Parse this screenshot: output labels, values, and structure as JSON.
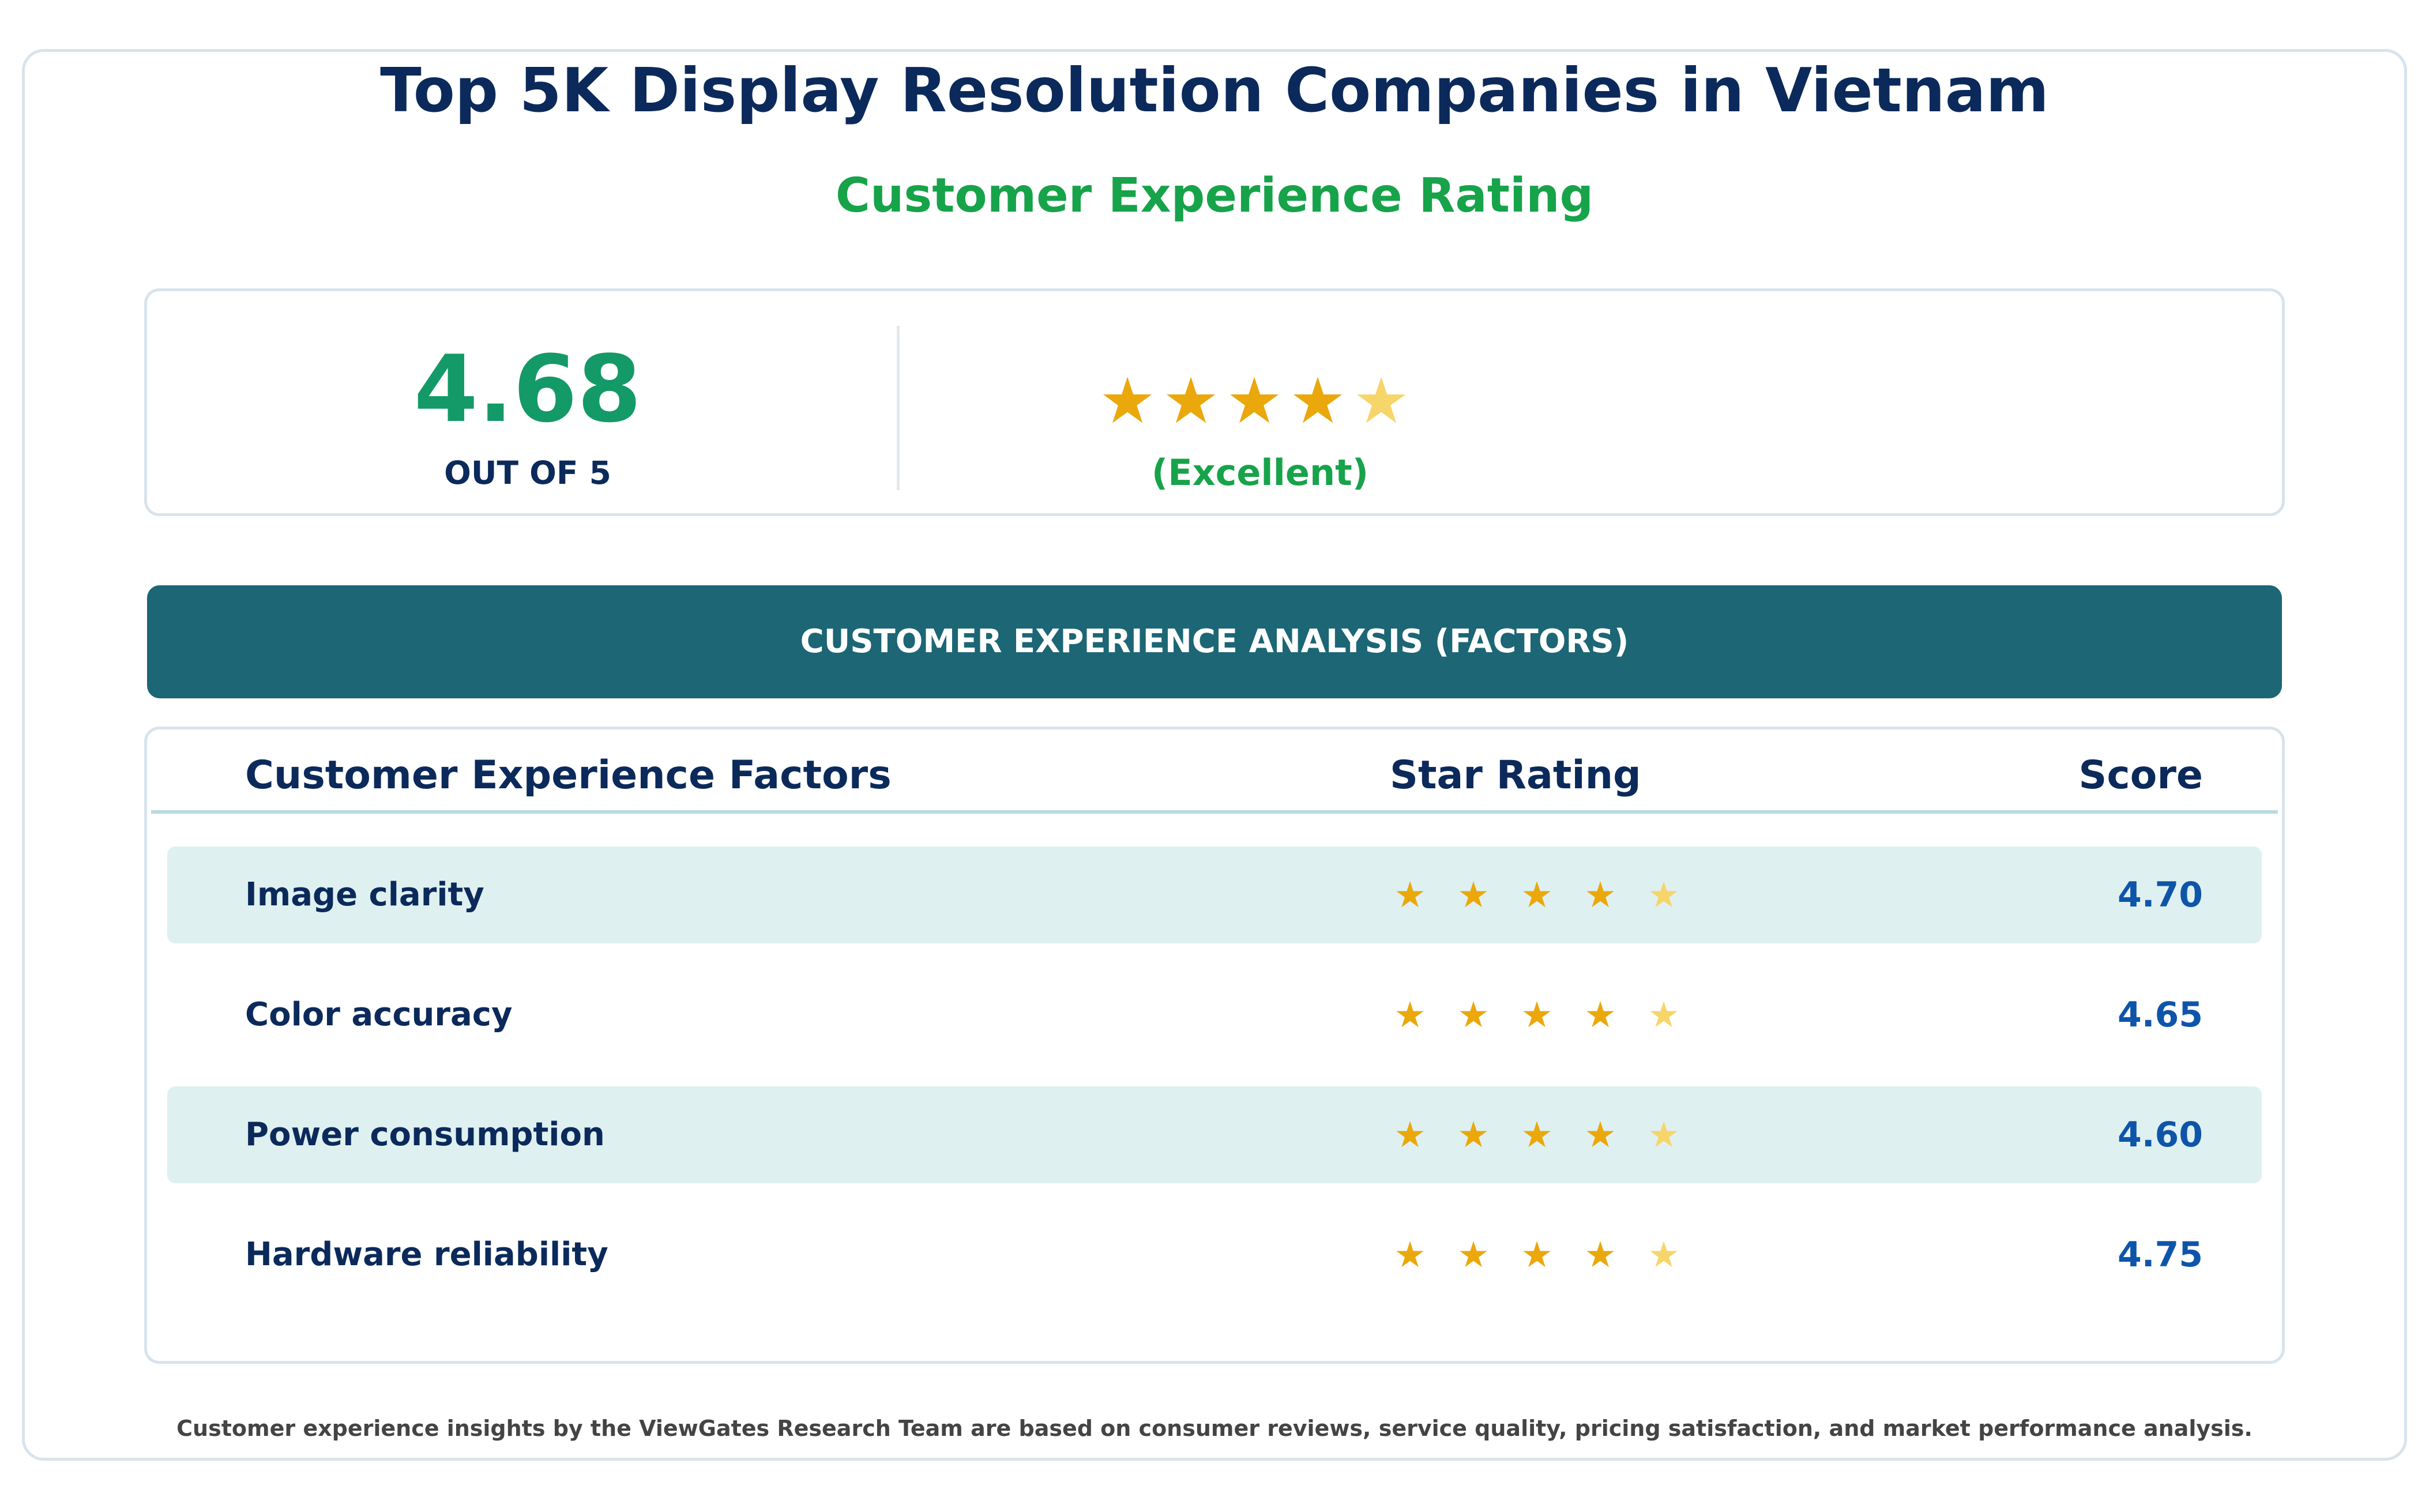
{
  "page": {
    "title": "Top 5K Display Resolution Companies in Vietnam",
    "subtitle": "Customer Experience Rating"
  },
  "summary": {
    "score": "4.68",
    "scale_label": "OUT OF 5",
    "star_rating": 4.68,
    "star_max": 5,
    "stars": [
      "★",
      "★",
      "★",
      "★",
      "★"
    ],
    "rating_word": "(Excellent)"
  },
  "analysis": {
    "banner": "CUSTOMER EXPERIENCE ANALYSIS (FACTORS)",
    "columns": {
      "factor": "Customer Experience Factors",
      "stars": "Star Rating",
      "score": "Score"
    },
    "rows": [
      {
        "factor": "Image clarity",
        "score": "4.70",
        "rating": 4.7,
        "stars": [
          "★",
          "★",
          "★",
          "★",
          "★"
        ]
      },
      {
        "factor": "Color accuracy",
        "score": "4.65",
        "rating": 4.65,
        "stars": [
          "★",
          "★",
          "★",
          "★",
          "★"
        ]
      },
      {
        "factor": "Power consumption",
        "score": "4.60",
        "rating": 4.6,
        "stars": [
          "★",
          "★",
          "★",
          "★",
          "★"
        ]
      },
      {
        "factor": "Hardware reliability",
        "score": "4.75",
        "rating": 4.75,
        "stars": [
          "★",
          "★",
          "★",
          "★",
          "★"
        ]
      }
    ]
  },
  "footnote": "Customer experience insights by the ViewGates Research Team are based on consumer reviews, service quality, pricing satisfaction, and market performance analysis.",
  "colors": {
    "title": "#0b2a5b",
    "accent_green": "#17a34a",
    "score_green": "#139a68",
    "banner": "#1c6675",
    "row_shade": "#dff0f0",
    "score_blue": "#0e55aa",
    "star_full": "#eaa80c",
    "star_partial": "#f6d56a"
  }
}
